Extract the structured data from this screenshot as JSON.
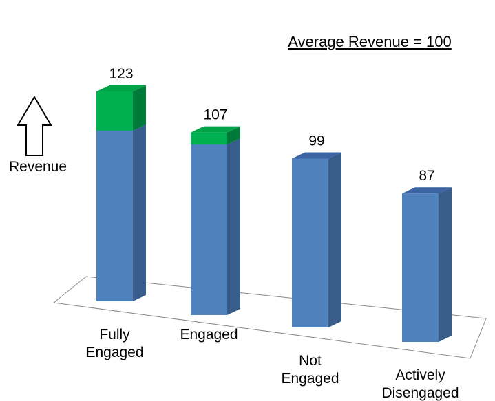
{
  "chart_data": {
    "type": "bar",
    "title": "",
    "annotation": "Average Revenue = 100",
    "ylabel": "Revenue",
    "xlabel": "",
    "baseline_value": 100,
    "categories": [
      [
        "Fully",
        "Engaged"
      ],
      [
        "Engaged"
      ],
      [
        "Not",
        "Engaged"
      ],
      [
        "Actively",
        "Disengaged"
      ]
    ],
    "values": [
      123,
      107,
      99,
      87
    ],
    "data_labels": [
      "123",
      "107",
      "99",
      "87"
    ],
    "grid": false,
    "legend": "none"
  },
  "colors": {
    "bar_front": "#4F81BD",
    "bar_side": "#385D8A",
    "bar_top": "#3B64A0",
    "above_front": "#00B050",
    "above_side": "#007A38",
    "above_top": "#00A448",
    "floor_stroke": "#888888"
  },
  "icons": {
    "ylabel_arrow": "up-arrow-icon"
  }
}
